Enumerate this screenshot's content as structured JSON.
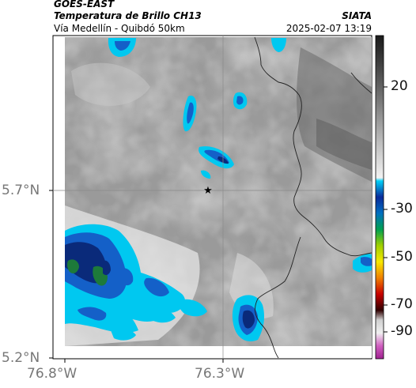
{
  "header": {
    "satellite": "GOES-EAST",
    "product": "Temperatura de Brillo CH13",
    "source": "SIATA",
    "region": "Vía Medellín - Quibdó 50km",
    "datetime": "2025-02-07 13:19"
  },
  "map": {
    "lat_ticks": [
      "5.7°N",
      "5.2°N"
    ],
    "lon_ticks": [
      "76.8°W",
      "76.3°W"
    ],
    "marker_icon": "star-icon",
    "colors": {
      "cold_cloud": "#00c8f0",
      "colder_cloud": "#1460c8",
      "coldest_cloud": "#0a2a7a",
      "border_line": "#222222",
      "grid_line": "#8a8a8a"
    }
  },
  "colorbar": {
    "labels": [
      "20",
      "-30",
      "-50",
      "-70",
      "-90"
    ],
    "units_shown": false
  }
}
